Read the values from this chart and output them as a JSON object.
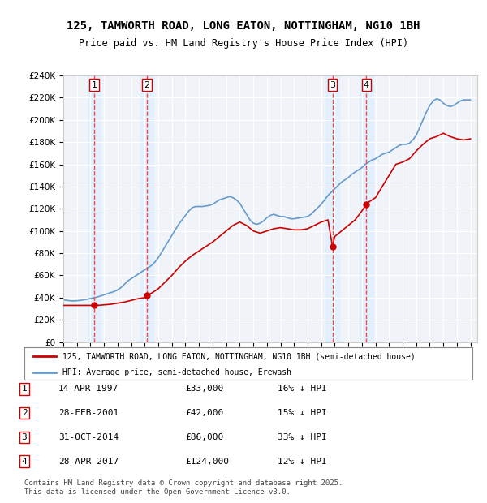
{
  "title": "125, TAMWORTH ROAD, LONG EATON, NOTTINGHAM, NG10 1BH",
  "subtitle": "Price paid vs. HM Land Registry's House Price Index (HPI)",
  "xlabel": "",
  "ylabel": "",
  "ylim": [
    0,
    240000
  ],
  "xlim_start": 1995.0,
  "xlim_end": 2025.5,
  "yticks": [
    0,
    20000,
    40000,
    60000,
    80000,
    100000,
    120000,
    140000,
    160000,
    180000,
    200000,
    220000,
    240000
  ],
  "ytick_labels": [
    "£0",
    "£20K",
    "£40K",
    "£60K",
    "£80K",
    "£100K",
    "£120K",
    "£140K",
    "£160K",
    "£180K",
    "£200K",
    "£220K",
    "£240K"
  ],
  "transactions": [
    {
      "num": 1,
      "date": "14-APR-1997",
      "year": 1997.28,
      "price": 33000,
      "label": "16% ↓ HPI"
    },
    {
      "num": 2,
      "date": "28-FEB-2001",
      "year": 2001.16,
      "price": 42000,
      "label": "15% ↓ HPI"
    },
    {
      "num": 3,
      "date": "31-OCT-2014",
      "year": 2014.83,
      "price": 86000,
      "label": "33% ↓ HPI"
    },
    {
      "num": 4,
      "date": "28-APR-2017",
      "year": 2017.33,
      "price": 124000,
      "label": "12% ↓ HPI"
    }
  ],
  "legend_property": "125, TAMWORTH ROAD, LONG EATON, NOTTINGHAM, NG10 1BH (semi-detached house)",
  "legend_hpi": "HPI: Average price, semi-detached house, Erewash",
  "property_color": "#cc0000",
  "hpi_color": "#6699cc",
  "vline_color": "#ff4444",
  "marker_color": "#cc0000",
  "shading_color": "#ddeeff",
  "footer": "Contains HM Land Registry data © Crown copyright and database right 2025.\nThis data is licensed under the Open Government Licence v3.0.",
  "hpi_data_x": [
    1995.0,
    1995.25,
    1995.5,
    1995.75,
    1996.0,
    1996.25,
    1996.5,
    1996.75,
    1997.0,
    1997.25,
    1997.5,
    1997.75,
    1998.0,
    1998.25,
    1998.5,
    1998.75,
    1999.0,
    1999.25,
    1999.5,
    1999.75,
    2000.0,
    2000.25,
    2000.5,
    2000.75,
    2001.0,
    2001.25,
    2001.5,
    2001.75,
    2002.0,
    2002.25,
    2002.5,
    2002.75,
    2003.0,
    2003.25,
    2003.5,
    2003.75,
    2004.0,
    2004.25,
    2004.5,
    2004.75,
    2005.0,
    2005.25,
    2005.5,
    2005.75,
    2006.0,
    2006.25,
    2006.5,
    2006.75,
    2007.0,
    2007.25,
    2007.5,
    2007.75,
    2008.0,
    2008.25,
    2008.5,
    2008.75,
    2009.0,
    2009.25,
    2009.5,
    2009.75,
    2010.0,
    2010.25,
    2010.5,
    2010.75,
    2011.0,
    2011.25,
    2011.5,
    2011.75,
    2012.0,
    2012.25,
    2012.5,
    2012.75,
    2013.0,
    2013.25,
    2013.5,
    2013.75,
    2014.0,
    2014.25,
    2014.5,
    2014.75,
    2015.0,
    2015.25,
    2015.5,
    2015.75,
    2016.0,
    2016.25,
    2016.5,
    2016.75,
    2017.0,
    2017.25,
    2017.5,
    2017.75,
    2018.0,
    2018.25,
    2018.5,
    2018.75,
    2019.0,
    2019.25,
    2019.5,
    2019.75,
    2020.0,
    2020.25,
    2020.5,
    2020.75,
    2021.0,
    2021.25,
    2021.5,
    2021.75,
    2022.0,
    2022.25,
    2022.5,
    2022.75,
    2023.0,
    2023.25,
    2023.5,
    2023.75,
    2024.0,
    2024.25,
    2024.5,
    2024.75,
    2025.0
  ],
  "hpi_data_y": [
    38000,
    37500,
    37200,
    37000,
    37200,
    37500,
    38000,
    38500,
    39200,
    39800,
    40500,
    41500,
    42500,
    43500,
    44500,
    45500,
    47000,
    49000,
    52000,
    55000,
    57000,
    59000,
    61000,
    63000,
    65000,
    67000,
    69000,
    72000,
    76000,
    81000,
    86000,
    91000,
    96000,
    101000,
    106000,
    110000,
    114000,
    118000,
    121000,
    122000,
    122000,
    122000,
    122500,
    123000,
    124000,
    126000,
    128000,
    129000,
    130000,
    131000,
    130000,
    128000,
    125000,
    120000,
    115000,
    110000,
    107000,
    106000,
    107000,
    109000,
    112000,
    114000,
    115000,
    114000,
    113000,
    113000,
    112000,
    111000,
    111000,
    111500,
    112000,
    112500,
    113000,
    115000,
    118000,
    121000,
    124000,
    128000,
    132000,
    135000,
    138000,
    141000,
    144000,
    146000,
    148000,
    151000,
    153000,
    155000,
    157000,
    160000,
    162000,
    164000,
    165000,
    167000,
    169000,
    170000,
    171000,
    173000,
    175000,
    177000,
    178000,
    178000,
    179000,
    182000,
    186000,
    193000,
    200000,
    207000,
    213000,
    217000,
    219000,
    218000,
    215000,
    213000,
    212000,
    213000,
    215000,
    217000,
    218000,
    218000,
    218000
  ],
  "property_data_x": [
    1995.0,
    1995.5,
    1996.0,
    1996.5,
    1997.0,
    1997.28,
    1997.5,
    1997.75,
    1998.0,
    1998.5,
    1999.0,
    1999.5,
    2000.0,
    2000.5,
    2001.0,
    2001.16,
    2001.5,
    2002.0,
    2002.5,
    2003.0,
    2003.5,
    2004.0,
    2004.5,
    2005.0,
    2005.5,
    2006.0,
    2006.5,
    2007.0,
    2007.5,
    2008.0,
    2008.5,
    2009.0,
    2009.5,
    2010.0,
    2010.5,
    2011.0,
    2011.5,
    2012.0,
    2012.5,
    2013.0,
    2013.5,
    2014.0,
    2014.5,
    2014.83,
    2015.0,
    2015.5,
    2016.0,
    2016.5,
    2017.0,
    2017.33,
    2017.5,
    2018.0,
    2018.5,
    2019.0,
    2019.5,
    2020.0,
    2020.5,
    2021.0,
    2021.5,
    2022.0,
    2022.5,
    2023.0,
    2023.5,
    2024.0,
    2024.5,
    2025.0
  ],
  "property_data_y": [
    33000,
    33000,
    33000,
    33000,
    33000,
    33000,
    33000,
    33200,
    33500,
    34000,
    35000,
    36000,
    37500,
    39000,
    40000,
    42000,
    44000,
    48000,
    54000,
    60000,
    67000,
    73000,
    78000,
    82000,
    86000,
    90000,
    95000,
    100000,
    105000,
    108000,
    105000,
    100000,
    98000,
    100000,
    102000,
    103000,
    102000,
    101000,
    101000,
    102000,
    105000,
    108000,
    110000,
    86000,
    95000,
    100000,
    105000,
    110000,
    118000,
    124000,
    126000,
    130000,
    140000,
    150000,
    160000,
    162000,
    165000,
    172000,
    178000,
    183000,
    185000,
    188000,
    185000,
    183000,
    182000,
    183000
  ]
}
